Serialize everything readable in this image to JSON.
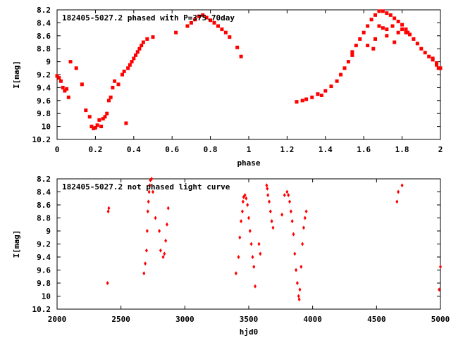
{
  "chart_data": [
    {
      "type": "scatter",
      "title": "182405-5027.2 phased with P=375.70day",
      "xlabel": "phase",
      "ylabel": "I[mag]",
      "xlim": [
        0,
        2
      ],
      "ylim": [
        10.2,
        8.2
      ],
      "y_inverted": true,
      "xticks": [
        "0",
        "0.2",
        "0.4",
        "0.6",
        "0.8",
        "1",
        "1.2",
        "1.4",
        "1.6",
        "1.8",
        "2"
      ],
      "yticks": [
        "8.2",
        "8.4",
        "8.6",
        "8.8",
        "9",
        "9.2",
        "9.4",
        "9.6",
        "9.8",
        "10",
        "10.2"
      ],
      "point_color": "#ff0000",
      "marker": "filled-square",
      "series": [
        {
          "x": [
            0.0,
            0.01,
            0.02,
            0.03,
            0.04,
            0.05,
            0.06,
            0.07,
            0.1,
            0.13,
            0.15,
            0.17,
            0.18,
            0.19,
            0.2,
            0.21,
            0.22,
            0.23,
            0.24,
            0.25,
            0.26,
            0.27,
            0.28,
            0.29,
            0.3,
            0.32,
            0.34,
            0.35,
            0.36,
            0.37,
            0.38,
            0.39,
            0.4,
            0.41,
            0.42,
            0.43,
            0.44,
            0.45,
            0.47,
            0.5,
            0.62,
            0.68,
            0.7,
            0.72,
            0.74,
            0.76,
            0.78,
            0.8,
            0.82,
            0.84,
            0.86,
            0.88,
            0.9,
            0.94,
            0.96,
            1.25,
            1.28,
            1.3,
            1.33,
            1.36,
            1.38,
            1.4,
            1.43,
            1.46,
            1.48,
            1.5,
            1.52,
            1.54,
            1.56,
            1.58,
            1.6,
            1.62,
            1.64,
            1.66,
            1.68,
            1.7,
            1.72,
            1.74,
            1.76,
            1.78,
            1.8,
            1.82,
            1.84,
            1.86,
            1.88,
            1.9,
            1.92,
            1.94,
            1.96,
            1.98,
            2.0,
            1.68,
            1.7,
            1.72,
            1.75,
            1.78,
            1.8,
            1.83,
            1.62,
            1.66,
            1.54,
            1.96,
            1.98,
            1.99,
            1.65,
            1.72,
            1.76,
            1.82
          ],
          "y": [
            9.22,
            9.25,
            9.3,
            9.4,
            9.45,
            9.42,
            9.55,
            9.0,
            9.1,
            9.35,
            9.75,
            9.85,
            10.0,
            10.03,
            10.02,
            9.98,
            9.9,
            10.0,
            9.88,
            9.85,
            9.8,
            9.6,
            9.55,
            9.4,
            9.3,
            9.35,
            9.2,
            9.15,
            9.95,
            9.1,
            9.05,
            9.0,
            8.95,
            8.9,
            8.85,
            8.8,
            8.75,
            8.7,
            8.65,
            8.62,
            8.55,
            8.45,
            8.4,
            8.35,
            8.3,
            8.28,
            8.32,
            8.36,
            8.4,
            8.45,
            8.5,
            8.55,
            8.62,
            8.78,
            8.92,
            9.62,
            9.6,
            9.58,
            9.55,
            9.5,
            9.52,
            9.45,
            9.38,
            9.3,
            9.2,
            9.1,
            9.0,
            8.85,
            8.75,
            8.65,
            8.55,
            8.45,
            8.35,
            8.28,
            8.22,
            8.22,
            8.25,
            8.28,
            8.33,
            8.38,
            8.43,
            8.5,
            8.58,
            8.65,
            8.72,
            8.8,
            8.86,
            8.92,
            8.97,
            9.02,
            9.1,
            8.45,
            8.48,
            8.5,
            8.45,
            8.55,
            8.5,
            8.55,
            8.75,
            8.65,
            8.9,
            8.95,
            9.05,
            9.1,
            8.8,
            8.6,
            8.7,
            8.55
          ]
        }
      ]
    },
    {
      "type": "scatter",
      "title": "182405-5027.2 not phased light curve",
      "xlabel": "hjd0",
      "ylabel": "I[mag]",
      "xlim": [
        2000,
        5000
      ],
      "ylim": [
        10.2,
        8.2
      ],
      "y_inverted": true,
      "xticks": [
        "2000",
        "2500",
        "3000",
        "3500",
        "4000",
        "4500",
        "5000"
      ],
      "yticks": [
        "8.2",
        "8.4",
        "8.6",
        "8.8",
        "9",
        "9.2",
        "9.4",
        "9.6",
        "9.8",
        "10",
        "10.2"
      ],
      "point_color": "#ff0000",
      "marker": "filled-diamond",
      "series": [
        {
          "x": [
            2395,
            2400,
            2405,
            2680,
            2690,
            2700,
            2705,
            2710,
            2715,
            2720,
            2725,
            2730,
            2740,
            2750,
            2770,
            2800,
            2810,
            2830,
            2840,
            2850,
            2860,
            2870,
            3400,
            3420,
            3430,
            3440,
            3450,
            3455,
            3460,
            3470,
            3480,
            3490,
            3500,
            3510,
            3520,
            3530,
            3540,
            3550,
            3580,
            3590,
            3640,
            3645,
            3650,
            3660,
            3670,
            3680,
            3690,
            3760,
            3780,
            3800,
            3810,
            3820,
            3830,
            3840,
            3850,
            3860,
            3870,
            3880,
            3890,
            3895,
            3900,
            3910,
            3920,
            3930,
            3940,
            3950,
            4660,
            4670,
            4700,
            4990,
            5000
          ],
          "y": [
            9.8,
            8.7,
            8.65,
            9.65,
            9.5,
            9.3,
            9.0,
            8.7,
            8.55,
            8.4,
            8.3,
            8.22,
            8.2,
            8.4,
            8.8,
            9.0,
            9.3,
            9.4,
            9.35,
            9.15,
            8.9,
            8.65,
            9.65,
            9.4,
            9.1,
            8.85,
            8.7,
            8.55,
            8.48,
            8.45,
            8.5,
            8.6,
            8.8,
            9.0,
            9.2,
            9.4,
            9.55,
            9.85,
            9.2,
            9.35,
            8.3,
            8.35,
            8.45,
            8.55,
            8.7,
            8.85,
            8.95,
            8.75,
            8.45,
            8.4,
            8.45,
            8.55,
            8.7,
            8.85,
            9.05,
            9.35,
            9.6,
            9.8,
            10.0,
            10.05,
            9.9,
            9.55,
            9.2,
            8.95,
            8.8,
            8.7,
            8.55,
            8.4,
            8.3,
            9.9,
            9.55
          ]
        }
      ]
    }
  ]
}
